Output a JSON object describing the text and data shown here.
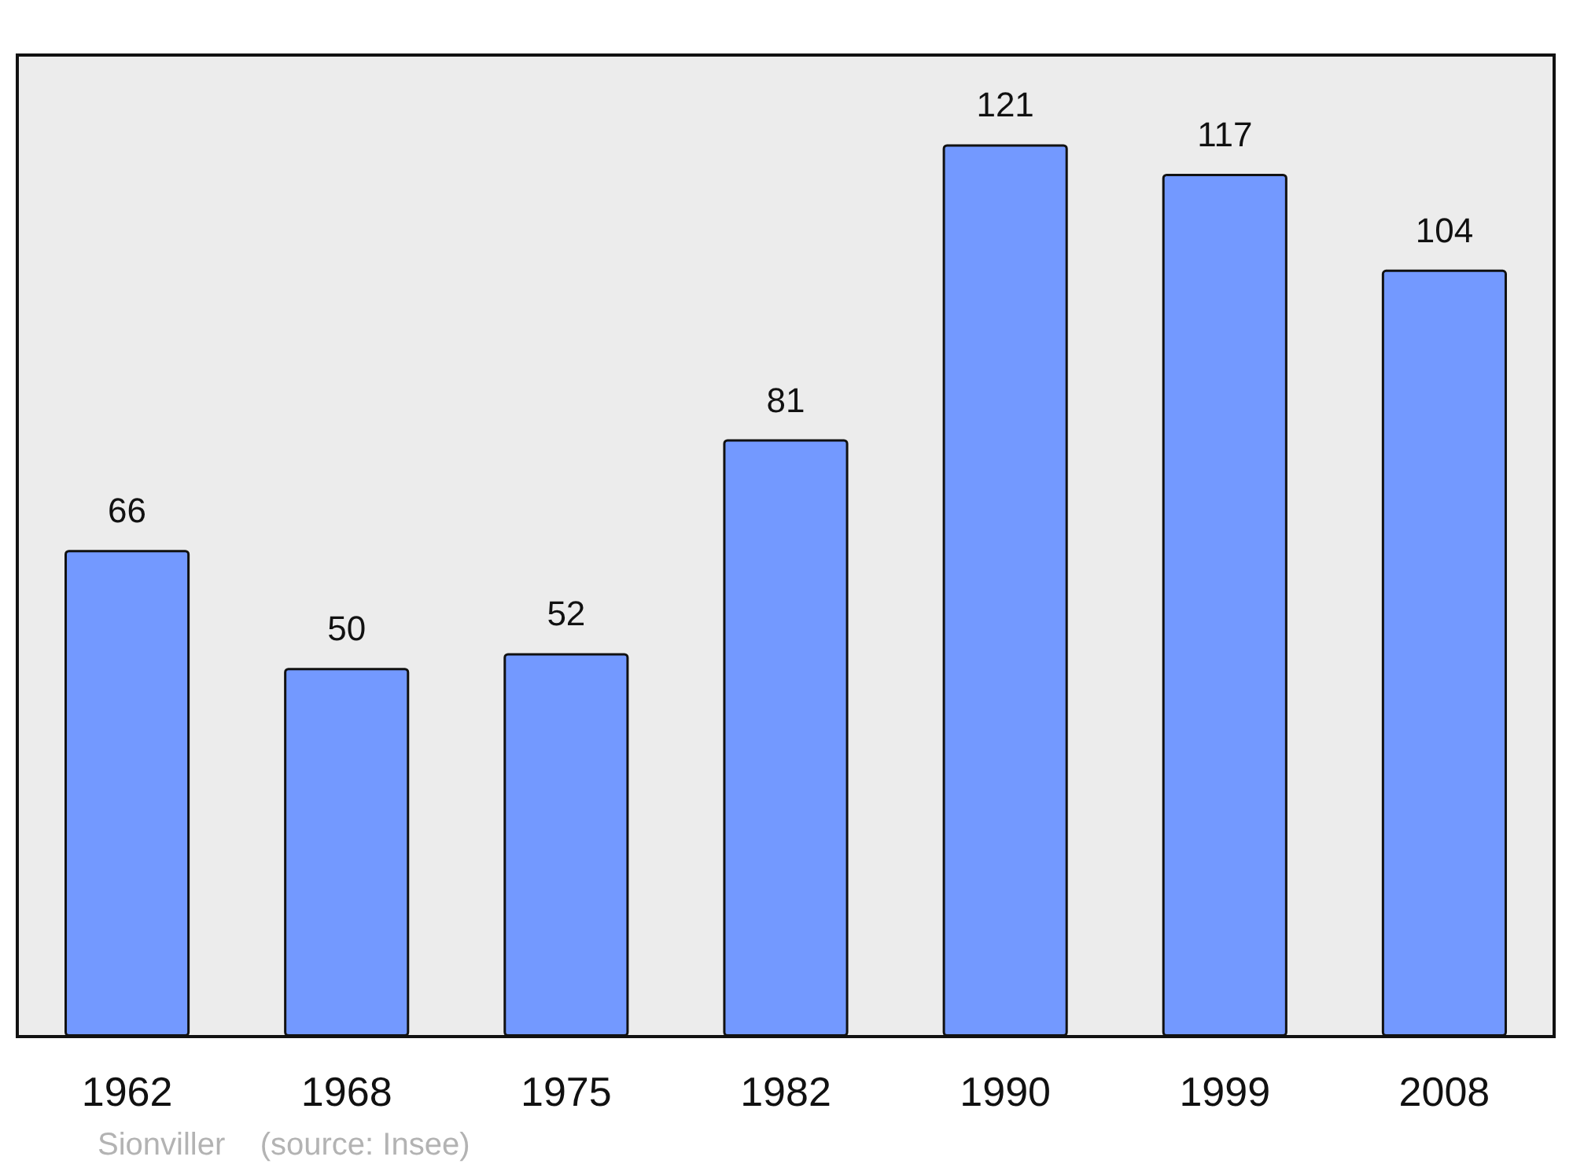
{
  "chart_data": {
    "type": "bar",
    "categories": [
      "1962",
      "1968",
      "1975",
      "1982",
      "1990",
      "1999",
      "2008"
    ],
    "values": [
      66,
      50,
      52,
      81,
      121,
      117,
      104
    ],
    "color": "#7399ff",
    "data_labels": true,
    "annotations": [
      "Sionviller    (source: Insee)"
    ]
  }
}
